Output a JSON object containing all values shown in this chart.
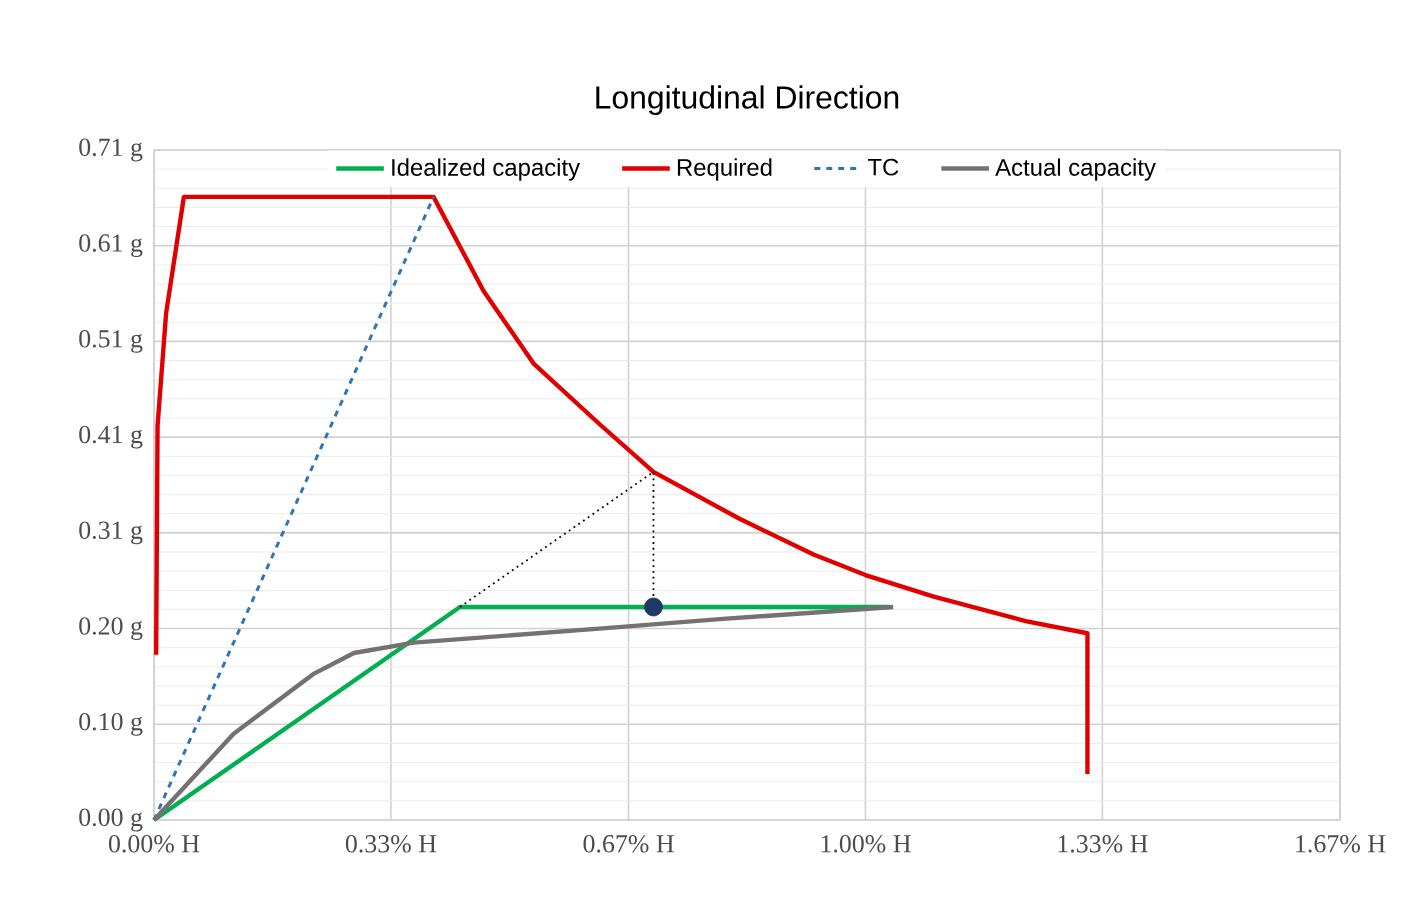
{
  "chart_data": {
    "type": "line",
    "title": "Longitudinal Direction",
    "xlim": [
      0,
      1.667
    ],
    "ylim": [
      0,
      0.714
    ],
    "xticks": [
      {
        "value": 0,
        "label": "0.00% H"
      },
      {
        "value": 0.333,
        "label": "0.33% H"
      },
      {
        "value": 0.667,
        "label": "0.67% H"
      },
      {
        "value": 1.0,
        "label": "1.00% H"
      },
      {
        "value": 1.333,
        "label": "1.33% H"
      },
      {
        "value": 1.667,
        "label": "1.67% H"
      }
    ],
    "yticks": [
      {
        "value": 0,
        "label": "0.00 g"
      },
      {
        "value": 0.102,
        "label": "0.10 g"
      },
      {
        "value": 0.204,
        "label": "0.20 g"
      },
      {
        "value": 0.306,
        "label": "0.31 g"
      },
      {
        "value": 0.408,
        "label": "0.41 g"
      },
      {
        "value": 0.51,
        "label": "0.51 g"
      },
      {
        "value": 0.612,
        "label": "0.61 g"
      },
      {
        "value": 0.714,
        "label": "0.71 g"
      }
    ],
    "grid": true,
    "legend": "top",
    "series": [
      {
        "name": "Idealized capacity",
        "color": "#00b050",
        "line_style": "solid",
        "x": [
          0,
          0.43,
          1.034
        ],
        "values": [
          0,
          0.227,
          0.227
        ]
      },
      {
        "name": "Required",
        "color": "#e00000",
        "line_style": "solid",
        "x": [
          0.003,
          0.005,
          0.017,
          0.042,
          0.393,
          0.463,
          0.534,
          0.626,
          0.702,
          0.823,
          0.927,
          1.0,
          1.096,
          1.225,
          1.312,
          1.312
        ],
        "values": [
          0.176,
          0.42,
          0.54,
          0.664,
          0.664,
          0.564,
          0.486,
          0.422,
          0.371,
          0.321,
          0.283,
          0.261,
          0.238,
          0.212,
          0.199,
          0.049
        ]
      },
      {
        "name": "TC",
        "color": "#2e75b6",
        "line_style": "dashed",
        "x": [
          0,
          0.393
        ],
        "values": [
          0,
          0.664
        ]
      },
      {
        "name": "Actual capacity",
        "color": "#767171",
        "line_style": "solid",
        "x": [
          0,
          0.112,
          0.225,
          0.281,
          0.365,
          0.626,
          0.795,
          1.039
        ],
        "values": [
          0,
          0.092,
          0.156,
          0.178,
          0.189,
          0.204,
          0.214,
          0.227
        ]
      },
      {
        "color": "#000000",
        "line_style": "dotted",
        "x": [
          0.43,
          0.702,
          0.702
        ],
        "values": [
          0.227,
          0.371,
          0.227
        ]
      },
      {
        "type": "scatter",
        "color": "#1f3864",
        "marker": "circle",
        "x": [
          0.702
        ],
        "values": [
          0.227
        ]
      }
    ]
  }
}
